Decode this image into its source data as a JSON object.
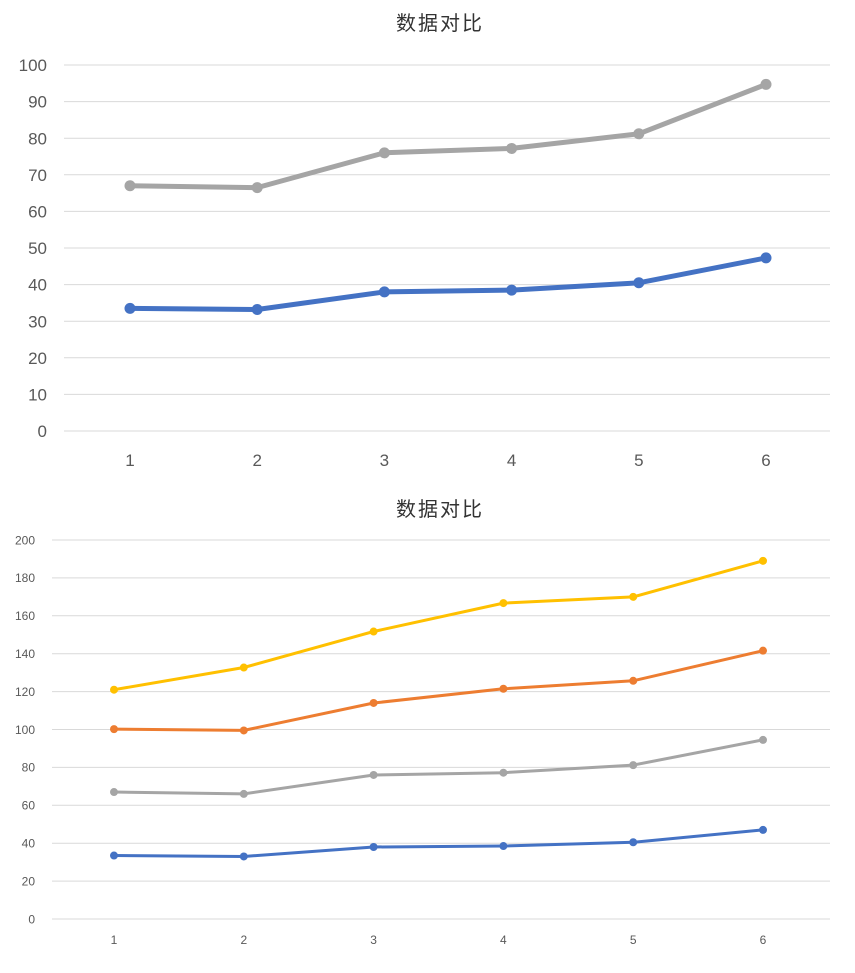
{
  "chart_data": [
    {
      "type": "line",
      "title": "数据对比",
      "xlabel": "",
      "ylabel": "",
      "categories": [
        "1",
        "2",
        "3",
        "4",
        "5",
        "6"
      ],
      "ylim": [
        0,
        100
      ],
      "yticks": [
        0,
        10,
        20,
        30,
        40,
        50,
        60,
        70,
        80,
        90,
        100
      ],
      "grid": true,
      "legend": "none",
      "series": [
        {
          "color": "#4472C4",
          "values": [
            33.5,
            33.2,
            38,
            38.5,
            40.5,
            47.3
          ]
        },
        {
          "color": "#A5A5A5",
          "values": [
            67,
            66.5,
            76,
            77.2,
            81.2,
            94.7
          ]
        }
      ]
    },
    {
      "type": "line",
      "title": "数据对比",
      "xlabel": "",
      "ylabel": "",
      "categories": [
        "1",
        "2",
        "3",
        "4",
        "5",
        "6"
      ],
      "ylim": [
        0,
        200
      ],
      "yticks": [
        0,
        20,
        40,
        60,
        80,
        100,
        120,
        140,
        160,
        180,
        200
      ],
      "grid": true,
      "legend": "none",
      "series": [
        {
          "color": "#4472C4",
          "values": [
            33.5,
            33,
            38,
            38.5,
            40.5,
            47
          ]
        },
        {
          "color": "#A5A5A5",
          "values": [
            67,
            66,
            76,
            77.2,
            81.2,
            94.5
          ]
        },
        {
          "color": "#ED7D31",
          "values": [
            100.2,
            99.5,
            114,
            121.5,
            125.7,
            141.6
          ]
        },
        {
          "color": "#FFC000",
          "values": [
            121,
            132.7,
            151.7,
            166.7,
            170,
            189
          ]
        }
      ]
    }
  ]
}
